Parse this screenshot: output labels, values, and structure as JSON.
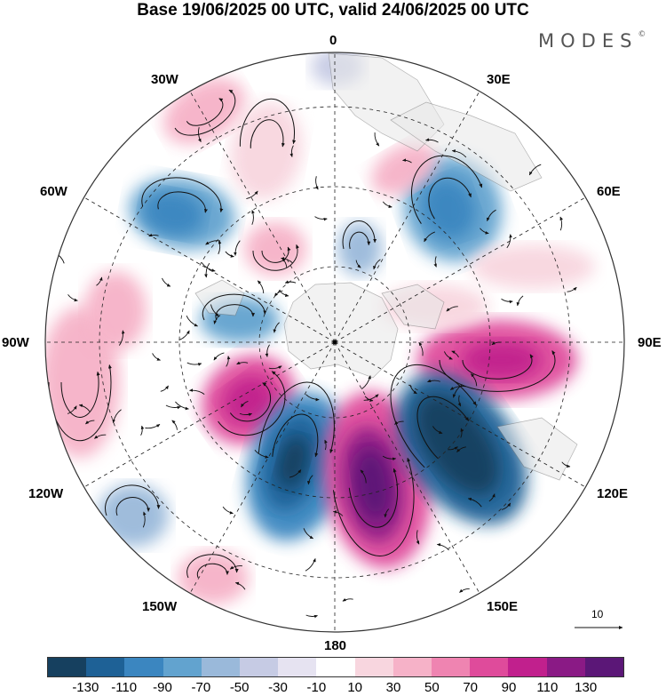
{
  "title": "Base 19/06/2025 00 UTC, valid 24/06/2025 00 UTC",
  "brand": "MODES",
  "brand_mark": "©",
  "longitude_labels": {
    "lon_0": "0",
    "lon_30e": "30E",
    "lon_60e": "60E",
    "lon_90e": "90E",
    "lon_120e": "120E",
    "lon_150e": "150E",
    "lon_180": "180",
    "lon_150w": "150W",
    "lon_120w": "120W",
    "lon_90w": "90W",
    "lon_60w": "60W",
    "lon_30w": "30W"
  },
  "reference_vector": {
    "label": "10"
  },
  "colorbar": {
    "ticks": [
      "-130",
      "-110",
      "-90",
      "-70",
      "-50",
      "-30",
      "-10",
      "10",
      "30",
      "50",
      "70",
      "90",
      "110",
      "130"
    ],
    "colors": [
      "#16405f",
      "#1e6196",
      "#3b86c0",
      "#62a3cf",
      "#9ab9da",
      "#c6cbe4",
      "#e6e3f1",
      "#ffffff",
      "#f8d6df",
      "#f6b2c8",
      "#ef84b1",
      "#df4b9b",
      "#c1208d",
      "#8a1a85",
      "#5b1777"
    ]
  },
  "map_colors": {
    "land": "#e8e8e8",
    "coast": "#777777",
    "grid": "#222222",
    "stream": "#111111"
  }
}
